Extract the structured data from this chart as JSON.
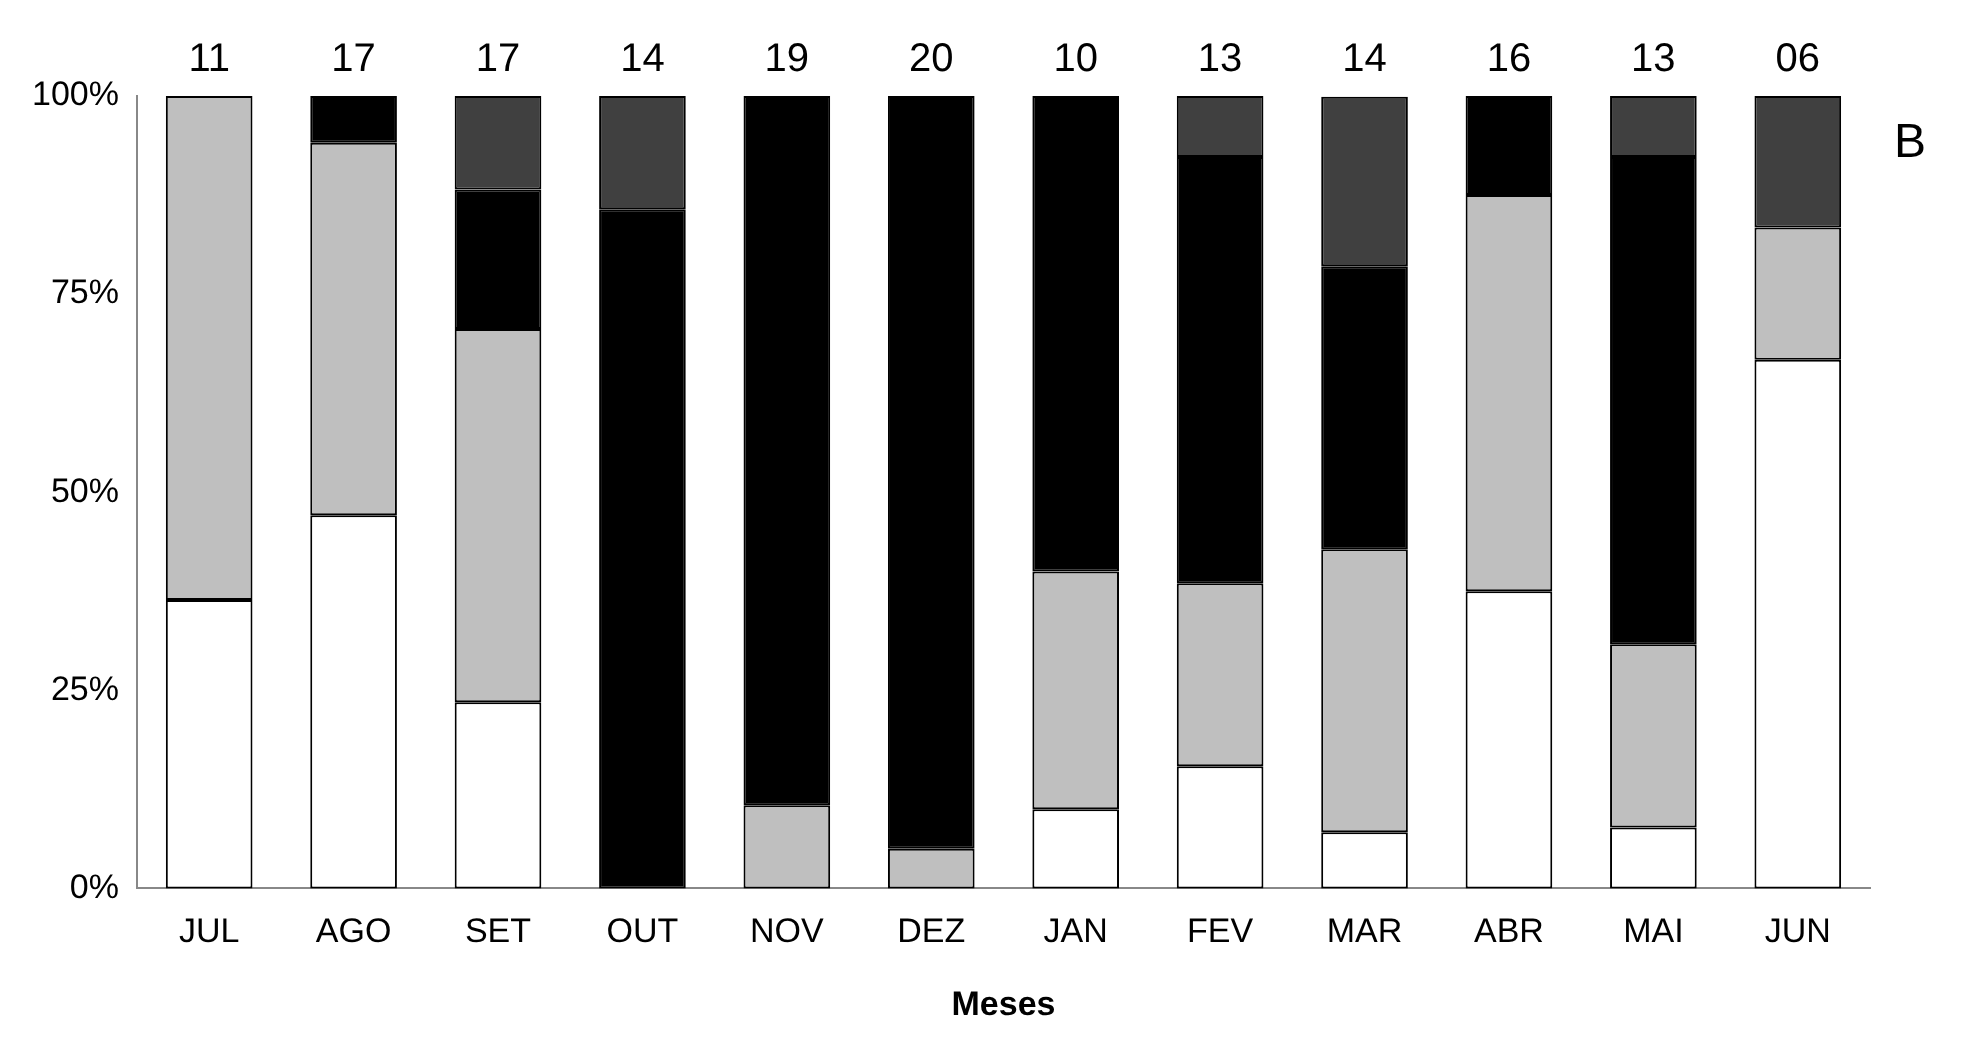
{
  "chart_data": {
    "type": "bar",
    "stacked": true,
    "xlabel": "Meses",
    "categories": [
      "JUL",
      "AGO",
      "SET",
      "OUT",
      "NOV",
      "DEZ",
      "JAN",
      "FEV",
      "MAR",
      "ABR",
      "MAI",
      "JUN"
    ],
    "series": [
      {
        "color": "#ffffff",
        "values": [
          36.4,
          47.1,
          23.5,
          0,
          0,
          0,
          10,
          15.4,
          7.1,
          37.5,
          7.7,
          66.7
        ]
      },
      {
        "color": "#bfbfbf",
        "values": [
          63.6,
          47.0,
          47.1,
          0,
          10.5,
          5,
          30,
          23.1,
          35.7,
          50,
          23.1,
          16.7
        ]
      },
      {
        "color": "#000000",
        "values": [
          0,
          5.9,
          17.6,
          85.7,
          89.5,
          95,
          60,
          53.8,
          35.7,
          12.5,
          61.5,
          0
        ]
      },
      {
        "color": "#404040",
        "values": [
          0,
          0,
          11.8,
          14.3,
          0,
          0,
          0,
          7.7,
          21.4,
          0,
          7.7,
          16.6
        ]
      }
    ],
    "annotations": [
      {
        "text": "11",
        "x": "JUL",
        "y": 100
      },
      {
        "text": "17",
        "x": "AGO",
        "y": 100
      },
      {
        "text": "17",
        "x": "SET",
        "y": 100
      },
      {
        "text": "14",
        "x": "OUT",
        "y": 100
      },
      {
        "text": "19",
        "x": "NOV",
        "y": 100
      },
      {
        "text": "20",
        "x": "DEZ",
        "y": 100
      },
      {
        "text": "10",
        "x": "JAN",
        "y": 100
      },
      {
        "text": "13",
        "x": "FEV",
        "y": 100
      },
      {
        "text": "14",
        "x": "MAR",
        "y": 100
      },
      {
        "text": "16",
        "x": "ABR",
        "y": 100
      },
      {
        "text": "13",
        "x": "MAI",
        "y": 100
      },
      {
        "text": "06",
        "x": "JUN",
        "y": 100
      },
      "B"
    ],
    "ylim": [
      0,
      100
    ],
    "yticks": [
      {
        "value": 0,
        "label": "0%"
      },
      {
        "value": 25,
        "label": "25%"
      },
      {
        "value": 50,
        "label": "50%"
      },
      {
        "value": 75,
        "label": "75%"
      },
      {
        "value": 100,
        "label": "100%"
      }
    ],
    "grid": false,
    "legend": false
  }
}
